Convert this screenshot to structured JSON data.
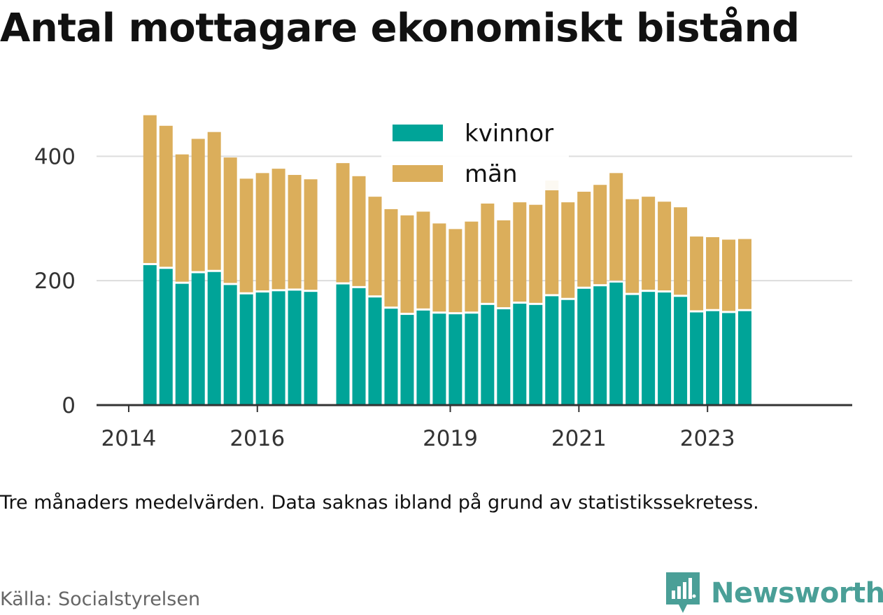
{
  "title": "Antal mottagare ekonomiskt bistånd",
  "note": "Tre månaders medelvärden. Data saknas ibland på grund av statistikssekretess.",
  "source": "Källa: Socialstyrelsen",
  "brand": {
    "name": "Newsworthy",
    "icon": "newsworthy-logo-icon",
    "color": "#4a9f97"
  },
  "colors": {
    "kvinnor": "#00a498",
    "man": "#dbae5b",
    "grid": "#dddddd",
    "axis": "#333333"
  },
  "chart_data": {
    "type": "bar",
    "stacked": true,
    "legend": [
      "kvinnor",
      "män"
    ],
    "legend_position": "top-center",
    "grid": true,
    "ylim": [
      0,
      460
    ],
    "yticks": [
      0,
      200,
      400
    ],
    "xticks": [
      {
        "label": "2014",
        "x": 2014.0
      },
      {
        "label": "2016",
        "x": 2016.0
      },
      {
        "label": "2019",
        "x": 2019.0
      },
      {
        "label": "2021",
        "x": 2021.0
      },
      {
        "label": "2023",
        "x": 2023.0
      }
    ],
    "xlim": [
      2013.5,
      2025.25
    ],
    "x": [
      2014.33,
      2014.58,
      2014.83,
      2015.08,
      2015.33,
      2015.58,
      2015.83,
      2016.08,
      2016.33,
      2016.58,
      2016.83,
      2017.33,
      2017.58,
      2017.83,
      2018.08,
      2018.33,
      2018.58,
      2018.83,
      2019.08,
      2019.33,
      2019.58,
      2019.83,
      2020.08,
      2020.33,
      2020.58,
      2020.83,
      2021.08,
      2021.33,
      2021.58,
      2021.83,
      2022.08,
      2022.33,
      2022.58,
      2022.83,
      2023.08,
      2023.33,
      2023.58
    ],
    "series": [
      {
        "name": "kvinnor",
        "values": [
          225,
          219,
          195,
          212,
          214,
          193,
          178,
          181,
          183,
          184,
          182,
          194,
          188,
          173,
          155,
          145,
          152,
          147,
          146,
          147,
          161,
          154,
          163,
          161,
          175,
          169,
          187,
          191,
          197,
          177,
          182,
          181,
          174,
          149,
          151,
          148,
          151
        ]
      },
      {
        "name": "män",
        "values": [
          241,
          230,
          208,
          216,
          225,
          205,
          186,
          192,
          197,
          186,
          181,
          195,
          180,
          162,
          160,
          160,
          159,
          145,
          137,
          148,
          163,
          143,
          163,
          161,
          186,
          157,
          156,
          163,
          176,
          154,
          153,
          146,
          144,
          122,
          119,
          118,
          116
        ]
      }
    ]
  }
}
